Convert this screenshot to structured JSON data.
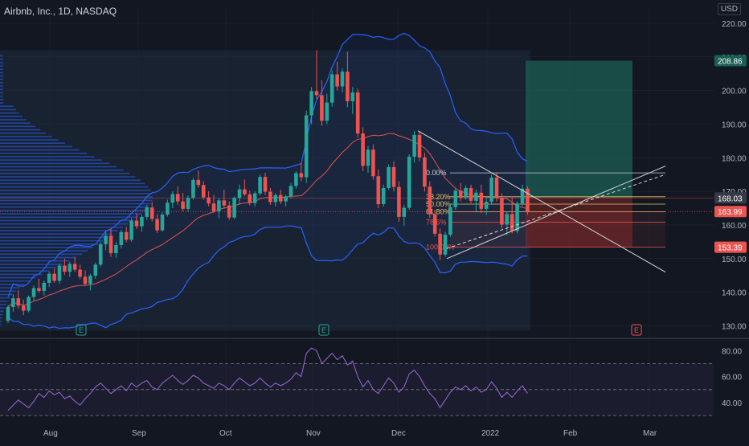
{
  "header": {
    "title": "Airbnb, Inc., 1D, NASDAQ",
    "currency": "USD"
  },
  "colors": {
    "bg": "#131722",
    "up": "#26a69a",
    "down": "#ef5350",
    "bb": "#2962ff",
    "basis": "#e0534f",
    "rsi": "#9c6bd6",
    "grid": "#363a45",
    "text": "#b2b5be",
    "green_zone": "#1c5d54",
    "red_zone": "#5b2227"
  },
  "chart_data": [
    {
      "type": "candlestick",
      "title": "Airbnb, Inc., 1D, NASDAQ",
      "y_ticks": [
        "220.00",
        "210.00",
        "200.00",
        "190.00",
        "180.00",
        "170.00",
        "160.00",
        "150.00",
        "140.00",
        "130.00"
      ],
      "ylim": [
        127,
        225
      ],
      "x_ticks": [
        "Aug",
        "Sep",
        "Oct",
        "Nov",
        "Dec",
        "2022",
        "Feb",
        "Mar"
      ],
      "price_badges": [
        {
          "label": "208.86",
          "value": 208.86,
          "color": "#1a5e55"
        },
        {
          "label": "168.03",
          "value": 168.03,
          "color": "#363a45"
        },
        {
          "label": "163.99",
          "value": 163.99,
          "color": "#ef5350"
        },
        {
          "label": "153.39",
          "value": 153.39,
          "color": "#ef5350"
        }
      ],
      "ohlc": [
        [
          131.5,
          136.2,
          130.8,
          135.6
        ],
        [
          135.6,
          139.4,
          134.2,
          138.2
        ],
        [
          138.2,
          140.6,
          135.1,
          136.0
        ],
        [
          136.0,
          137.8,
          133.2,
          134.5
        ],
        [
          134.5,
          139.0,
          134.0,
          138.6
        ],
        [
          138.6,
          142.0,
          137.5,
          141.2
        ],
        [
          141.2,
          144.0,
          139.8,
          140.4
        ],
        [
          140.4,
          143.5,
          139.0,
          142.8
        ],
        [
          142.8,
          146.2,
          141.5,
          145.5
        ],
        [
          145.5,
          147.0,
          142.8,
          143.4
        ],
        [
          143.4,
          148.5,
          142.6,
          147.9
        ],
        [
          147.9,
          150.0,
          145.2,
          146.1
        ],
        [
          146.1,
          149.0,
          144.5,
          148.4
        ],
        [
          148.4,
          150.5,
          146.0,
          146.7
        ],
        [
          146.7,
          148.2,
          143.9,
          144.6
        ],
        [
          144.6,
          146.5,
          141.8,
          142.5
        ],
        [
          142.5,
          145.5,
          140.5,
          144.9
        ],
        [
          144.9,
          148.8,
          144.0,
          148.2
        ],
        [
          148.2,
          155.0,
          147.6,
          154.3
        ],
        [
          154.3,
          158.2,
          152.5,
          156.8
        ],
        [
          156.8,
          159.0,
          150.5,
          151.6
        ],
        [
          151.6,
          155.0,
          150.2,
          154.0
        ],
        [
          154.0,
          158.5,
          153.0,
          157.9
        ],
        [
          157.9,
          159.5,
          154.8,
          155.6
        ],
        [
          155.6,
          162.0,
          155.0,
          161.3
        ],
        [
          161.3,
          163.5,
          158.8,
          159.6
        ],
        [
          159.6,
          163.0,
          158.0,
          162.4
        ],
        [
          162.4,
          166.0,
          161.5,
          165.2
        ],
        [
          165.2,
          166.8,
          161.0,
          161.8
        ],
        [
          161.8,
          163.2,
          157.6,
          158.4
        ],
        [
          158.4,
          163.8,
          158.0,
          163.1
        ],
        [
          163.1,
          167.5,
          162.5,
          166.6
        ],
        [
          166.6,
          170.0,
          165.0,
          169.2
        ],
        [
          169.2,
          171.5,
          166.0,
          167.0
        ],
        [
          167.0,
          169.5,
          164.0,
          164.8
        ],
        [
          164.8,
          168.8,
          164.0,
          168.1
        ],
        [
          168.1,
          174.0,
          167.5,
          173.4
        ],
        [
          173.4,
          176.2,
          171.0,
          171.9
        ],
        [
          171.9,
          173.0,
          167.5,
          168.2
        ],
        [
          168.2,
          170.0,
          165.5,
          166.4
        ],
        [
          166.4,
          169.0,
          163.5,
          164.1
        ],
        [
          164.1,
          168.0,
          162.0,
          167.3
        ],
        [
          167.3,
          170.5,
          165.0,
          165.8
        ],
        [
          165.8,
          167.0,
          161.5,
          162.2
        ],
        [
          162.2,
          168.5,
          161.8,
          168.0
        ],
        [
          168.0,
          172.0,
          166.0,
          170.6
        ],
        [
          170.6,
          173.5,
          168.5,
          169.1
        ],
        [
          169.1,
          170.2,
          165.8,
          166.5
        ],
        [
          166.5,
          170.0,
          165.5,
          169.4
        ],
        [
          169.4,
          175.0,
          168.8,
          174.3
        ],
        [
          174.3,
          175.5,
          169.0,
          169.9
        ],
        [
          169.9,
          171.0,
          166.0,
          166.8
        ],
        [
          166.8,
          169.5,
          165.5,
          168.9
        ],
        [
          168.9,
          170.5,
          166.2,
          167.0
        ],
        [
          167.0,
          169.0,
          165.5,
          168.5
        ],
        [
          168.5,
          172.5,
          167.8,
          171.6
        ],
        [
          171.6,
          176.0,
          170.8,
          175.4
        ],
        [
          175.4,
          178.5,
          173.0,
          174.2
        ],
        [
          174.2,
          194.0,
          172.5,
          192.6
        ],
        [
          192.6,
          201.0,
          190.0,
          199.8
        ],
        [
          199.8,
          212.0,
          197.5,
          198.6
        ],
        [
          198.6,
          203.0,
          189.5,
          191.0
        ],
        [
          191.0,
          199.0,
          190.0,
          196.4
        ],
        [
          196.4,
          206.0,
          195.2,
          204.8
        ],
        [
          204.8,
          208.5,
          200.0,
          201.2
        ],
        [
          201.2,
          206.5,
          199.5,
          205.6
        ],
        [
          205.6,
          211.5,
          195.0,
          196.8
        ],
        [
          196.8,
          201.0,
          193.0,
          199.4
        ],
        [
          199.4,
          200.5,
          186.0,
          187.2
        ],
        [
          187.2,
          189.0,
          176.0,
          177.6
        ],
        [
          177.6,
          183.5,
          175.5,
          182.4
        ],
        [
          182.4,
          184.0,
          173.5,
          174.5
        ],
        [
          174.5,
          176.5,
          165.0,
          166.2
        ],
        [
          166.2,
          172.0,
          165.5,
          171.0
        ],
        [
          171.0,
          178.0,
          170.5,
          177.2
        ],
        [
          177.2,
          179.0,
          170.0,
          171.3
        ],
        [
          171.3,
          173.0,
          161.0,
          162.4
        ],
        [
          162.4,
          166.0,
          159.8,
          165.1
        ],
        [
          165.1,
          181.0,
          164.5,
          180.3
        ],
        [
          180.3,
          188.0,
          178.5,
          186.8
        ],
        [
          186.8,
          188.0,
          179.0,
          180.1
        ],
        [
          180.1,
          181.5,
          170.0,
          171.4
        ],
        [
          171.4,
          173.0,
          162.0,
          163.2
        ],
        [
          163.2,
          164.5,
          156.5,
          157.4
        ],
        [
          157.4,
          159.0,
          149.5,
          151.2
        ],
        [
          151.2,
          158.0,
          150.5,
          157.1
        ],
        [
          157.1,
          166.0,
          156.5,
          165.3
        ],
        [
          165.3,
          171.0,
          164.5,
          170.2
        ],
        [
          170.2,
          172.5,
          167.0,
          168.1
        ],
        [
          168.1,
          171.8,
          167.5,
          171.0
        ],
        [
          171.0,
          172.0,
          166.5,
          167.2
        ],
        [
          167.2,
          170.5,
          164.0,
          169.6
        ],
        [
          169.6,
          172.0,
          163.5,
          164.8
        ],
        [
          164.8,
          168.0,
          163.0,
          166.9
        ],
        [
          166.9,
          175.0,
          166.0,
          174.1
        ],
        [
          174.1,
          175.5,
          167.0,
          168.0
        ],
        [
          168.0,
          169.5,
          159.0,
          160.1
        ],
        [
          160.1,
          164.0,
          157.0,
          163.2
        ],
        [
          163.2,
          168.5,
          157.5,
          158.2
        ],
        [
          158.2,
          167.0,
          157.5,
          166.4
        ],
        [
          166.4,
          172.0,
          165.5,
          170.8
        ],
        [
          170.8,
          171.5,
          163.0,
          163.99
        ]
      ],
      "bollinger": {
        "upper_start": 155.0,
        "upper_peak": 216.5,
        "upper_end": 172.0,
        "lower_start": 130.0,
        "lower_trough": 158.0,
        "lower_end": 156.0,
        "basis_start": 141.0,
        "basis_peak": 189.5,
        "basis_end": 164.5
      },
      "fibonacci": [
        {
          "label": "0.00%",
          "value": 175.5
        },
        {
          "label": "38.20%",
          "value": 168.4
        },
        {
          "label": "50.00%",
          "value": 166.2
        },
        {
          "label": "61.80%",
          "value": 163.9
        },
        {
          "label": "78.6%",
          "value": 160.8
        },
        {
          "label": "100.00%",
          "value": 153.39
        }
      ],
      "earnings_markers": [
        "E",
        "E",
        "E"
      ],
      "position": {
        "target": 208.86,
        "entry": 168.03,
        "stop": 153.39
      }
    },
    {
      "type": "line",
      "name": "rsi",
      "y_ticks": [
        "80.00",
        "60.00",
        "40.00"
      ],
      "ylim": [
        27,
        87
      ],
      "band": [
        30,
        70
      ],
      "values": [
        34,
        38,
        42,
        39,
        36,
        41,
        47,
        44,
        49,
        46,
        48,
        43,
        45,
        41,
        38,
        43,
        47,
        52,
        55,
        51,
        47,
        50,
        53,
        49,
        55,
        52,
        55,
        57,
        52,
        50,
        55,
        58,
        61,
        57,
        54,
        57,
        61,
        59,
        55,
        53,
        51,
        55,
        53,
        50,
        55,
        59,
        56,
        53,
        55,
        59,
        55,
        52,
        55,
        53,
        55,
        58,
        63,
        60,
        78,
        82,
        80,
        70,
        74,
        78,
        73,
        76,
        69,
        72,
        60,
        52,
        57,
        50,
        47,
        53,
        59,
        55,
        48,
        52,
        62,
        65,
        60,
        53,
        47,
        43,
        36,
        42,
        48,
        52,
        50,
        53,
        49,
        52,
        48,
        50,
        56,
        51,
        44,
        48,
        44,
        49,
        53,
        47
      ]
    }
  ]
}
